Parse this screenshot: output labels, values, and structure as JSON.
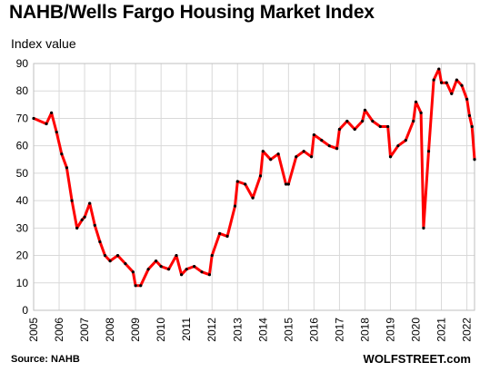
{
  "chart_data": {
    "type": "line",
    "title": "NAHB/Wells Fargo Housing Market Index",
    "ylabel": "Index value",
    "xlabel": "",
    "ylim": [
      0,
      90
    ],
    "xlim": [
      2005,
      2022.3
    ],
    "yticks": [
      0,
      10,
      20,
      30,
      40,
      50,
      60,
      70,
      80,
      90
    ],
    "xticks": [
      "2005",
      "2006",
      "2007",
      "2008",
      "2009",
      "2010",
      "2011",
      "2012",
      "2013",
      "2014",
      "2015",
      "2016",
      "2017",
      "2018",
      "2019",
      "2020",
      "2021",
      "2022"
    ],
    "grid": true,
    "source": "Source: NAHB",
    "watermark": "WOLFSTREET.com",
    "line_color": "#ff0000",
    "marker_color": "#000000",
    "series": [
      {
        "x": [
          2005.0,
          2005.5,
          2005.7,
          2005.9,
          2006.1,
          2006.3,
          2006.5,
          2006.7,
          2006.9,
          2007.0,
          2007.2,
          2007.4,
          2007.6,
          2007.8,
          2008.0,
          2008.3,
          2008.6,
          2008.9,
          2009.0,
          2009.2,
          2009.5,
          2009.8,
          2010.0,
          2010.3,
          2010.6,
          2010.8,
          2011.0,
          2011.3,
          2011.6,
          2011.9,
          2012.0,
          2012.3,
          2012.6,
          2012.9,
          2013.0,
          2013.3,
          2013.6,
          2013.9,
          2014.0,
          2014.3,
          2014.6,
          2014.9,
          2015.0,
          2015.3,
          2015.6,
          2015.9,
          2016.0,
          2016.3,
          2016.6,
          2016.9,
          2017.0,
          2017.3,
          2017.6,
          2017.9,
          2018.0,
          2018.3,
          2018.6,
          2018.9,
          2019.0,
          2019.3,
          2019.6,
          2019.9,
          2020.0,
          2020.2,
          2020.3,
          2020.5,
          2020.7,
          2020.9,
          2021.0,
          2021.2,
          2021.4,
          2021.6,
          2021.8,
          2022.0,
          2022.1,
          2022.2,
          2022.3
        ],
        "y": [
          70,
          68,
          72,
          65,
          57,
          52,
          40,
          30,
          33,
          34,
          39,
          31,
          25,
          20,
          18,
          20,
          17,
          14,
          9,
          9,
          15,
          18,
          16,
          15,
          20,
          13,
          15,
          16,
          14,
          13,
          20,
          28,
          27,
          38,
          47,
          46,
          41,
          49,
          58,
          55,
          57,
          46,
          46,
          56,
          58,
          56,
          64,
          62,
          60,
          59,
          66,
          69,
          66,
          69,
          73,
          69,
          67,
          67,
          56,
          60,
          62,
          69,
          76,
          72,
          30,
          58,
          84,
          88,
          83,
          83,
          79,
          84,
          82,
          77,
          71,
          67,
          55
        ]
      }
    ]
  }
}
